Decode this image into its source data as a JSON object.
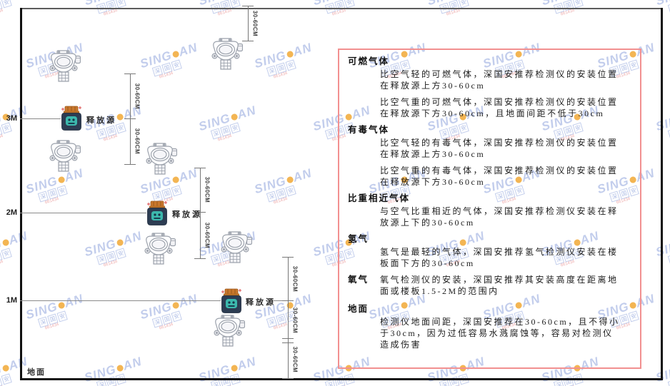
{
  "watermark": {
    "brand_left": "SING",
    "brand_right": "AN",
    "cn_chars": [
      "深",
      "国",
      "安"
    ],
    "red_text": "661434",
    "brand_color": "#bcc8ea",
    "dot_color": "#f2ae41"
  },
  "diagram": {
    "height_labels": [
      "3M",
      "2M",
      "1M"
    ],
    "release_source_label": "释放源",
    "dimension_label": "30-60CM",
    "ground_label": "地面"
  },
  "panel": {
    "border_color": "#f29090",
    "sections": [
      {
        "heading": "可燃气体",
        "inline": false,
        "paragraphs": [
          "比空气轻的可燃气体，深国安推荐检测仪的安装位置在释放源上方30-60cm",
          "比空气重的可燃气体，深国安推荐检测仪的安装位置在释放源下方30-60cm，且地面间距不低于30cm"
        ]
      },
      {
        "heading": "有毒气体",
        "inline": false,
        "paragraphs": [
          "比空气轻的有毒气体，深国安推荐检测仪的安装位置在释放源上方30-60cm",
          "比空气重的有毒气体，深国安推荐检测仪的安装位置在释放源下方30-60cm"
        ]
      },
      {
        "heading": "比重相近气体",
        "inline": false,
        "paragraphs": [
          "与空气比重相近的气体，深国安推荐检测仪安装在释放源上下的30-60cm"
        ]
      },
      {
        "heading": "氢气",
        "inline": false,
        "paragraphs": [
          "氢气是最轻的气体，深国安推荐氢气检测仪安装在楼板面下方的30-60cm"
        ]
      },
      {
        "heading": "氧气",
        "inline": true,
        "paragraphs": [
          "氧气检测仪的安装，深国安推荐其安装高度在距离地面或楼板1.5-2M的范围内"
        ]
      },
      {
        "heading": "地面",
        "inline": false,
        "gap_top": true,
        "paragraphs": [
          "检测仪地面间距，深国安推荐在30-60cm，且不得小于30cm，因为过低容易水溅腐蚀等，容易对检测仪造成伤害"
        ]
      }
    ]
  }
}
